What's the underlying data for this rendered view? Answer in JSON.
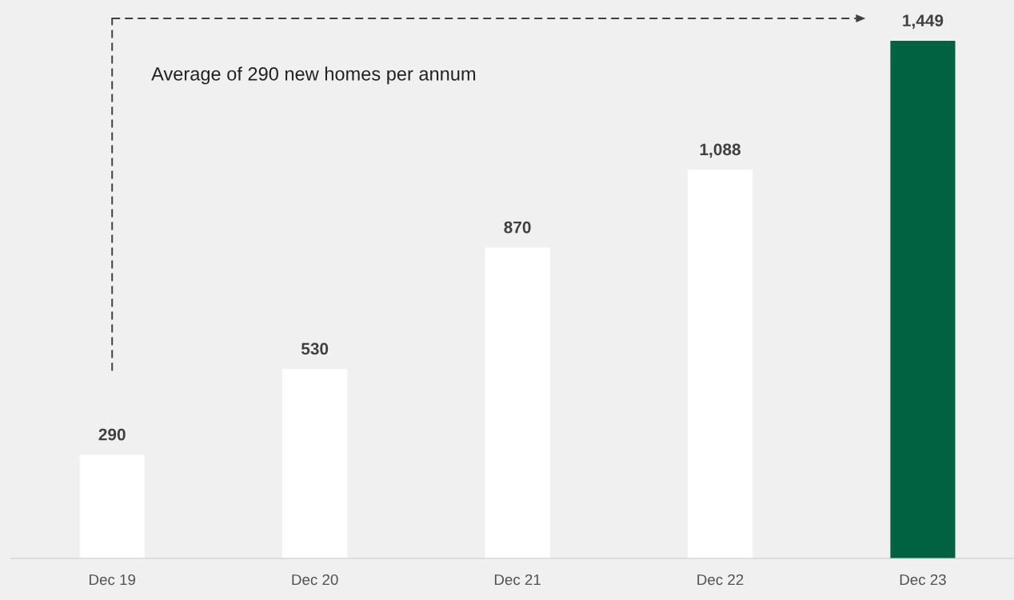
{
  "chart_data": {
    "type": "bar",
    "categories": [
      "Dec 19",
      "Dec 20",
      "Dec 21",
      "Dec 22",
      "Dec 23"
    ],
    "values": [
      290,
      530,
      870,
      1088,
      1449
    ],
    "colors": [
      "#ffffff",
      "#ffffff",
      "#ffffff",
      "#ffffff",
      "#006241"
    ],
    "value_labels": [
      "290",
      "530",
      "870",
      "1,088",
      "1,449"
    ],
    "grid": false,
    "annotations": [
      "Average of 290 new homes per annum"
    ]
  }
}
